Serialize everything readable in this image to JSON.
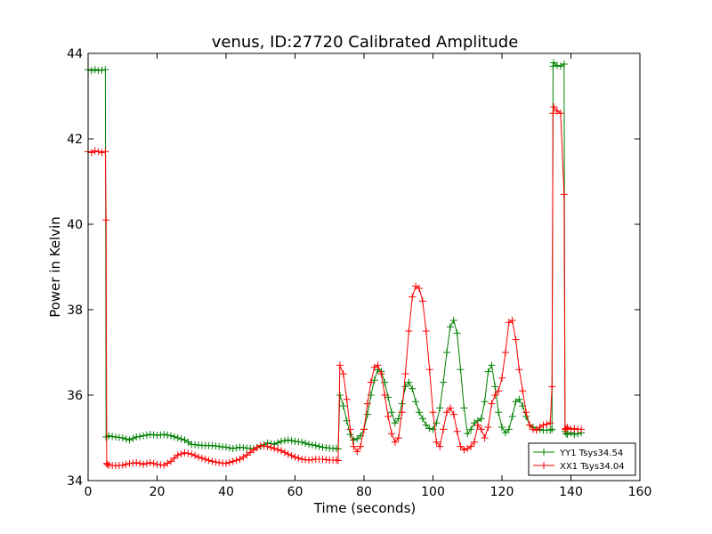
{
  "chart_data": {
    "type": "line",
    "title": "venus, ID:27720 Calibrated Amplitude",
    "xlabel": "Time (seconds)",
    "ylabel": "Power in Kelvin",
    "xlim": [
      0,
      160
    ],
    "ylim": [
      34,
      44
    ],
    "xticks": [
      0,
      20,
      40,
      60,
      80,
      100,
      120,
      140,
      160
    ],
    "yticks": [
      34,
      36,
      38,
      40,
      42,
      44
    ],
    "grid": false,
    "legend_position": "lower-right",
    "series": [
      {
        "name": "YY1 Tsys34.54",
        "color": "#008000",
        "marker": "+",
        "x": [
          0,
          1,
          2,
          3,
          4,
          5,
          5.2,
          5.4,
          6,
          8,
          10,
          12,
          14,
          16,
          18,
          20,
          22,
          24,
          26,
          28,
          30,
          32,
          34,
          36,
          38,
          40,
          42,
          44,
          46,
          48,
          50,
          52,
          54,
          56,
          58,
          60,
          62,
          64,
          66,
          68,
          70,
          72,
          72.5,
          73,
          74,
          75,
          76,
          77,
          78,
          79,
          80,
          81,
          82,
          83,
          84,
          85,
          86,
          87,
          88,
          89,
          90,
          91,
          92,
          93,
          94,
          95,
          96,
          97,
          98,
          99,
          100,
          101,
          102,
          103,
          104,
          105,
          106,
          107,
          108,
          109,
          110,
          111,
          112,
          113,
          114,
          115,
          116,
          117,
          118,
          119,
          120,
          121,
          122,
          123,
          124,
          125,
          126,
          127,
          128,
          129,
          130,
          131,
          132,
          133,
          134,
          134.5,
          134.8,
          135,
          136,
          137,
          138,
          138.3,
          138.6,
          139,
          140,
          141,
          142,
          143
        ],
        "y": [
          43.62,
          43.6,
          43.62,
          43.6,
          43.61,
          43.62,
          35.02,
          35.02,
          35.05,
          35.02,
          35.0,
          34.95,
          35.02,
          35.05,
          35.08,
          35.06,
          35.08,
          35.05,
          35.0,
          34.95,
          34.85,
          34.83,
          34.82,
          34.82,
          34.8,
          34.78,
          34.75,
          34.78,
          34.76,
          34.75,
          34.8,
          34.88,
          34.85,
          34.92,
          34.95,
          34.92,
          34.9,
          34.85,
          34.82,
          34.78,
          34.76,
          34.75,
          34.74,
          36.0,
          35.75,
          35.4,
          35.08,
          34.95,
          34.98,
          35.05,
          35.2,
          35.55,
          36.0,
          36.35,
          36.6,
          36.55,
          36.3,
          35.95,
          35.6,
          35.35,
          35.45,
          35.8,
          36.2,
          36.3,
          36.15,
          35.85,
          35.6,
          35.45,
          35.3,
          35.22,
          35.2,
          35.35,
          35.7,
          36.3,
          37.0,
          37.6,
          37.75,
          37.45,
          36.6,
          35.7,
          35.1,
          35.2,
          35.35,
          35.4,
          35.45,
          35.85,
          36.55,
          36.7,
          36.2,
          35.6,
          35.25,
          35.12,
          35.2,
          35.5,
          35.85,
          35.9,
          35.75,
          35.5,
          35.3,
          35.25,
          35.2,
          35.2,
          35.18,
          35.18,
          35.18,
          35.2,
          43.7,
          43.78,
          43.72,
          43.7,
          43.75,
          35.15,
          35.1,
          35.08,
          35.12,
          35.08,
          35.1,
          35.12
        ]
      },
      {
        "name": "XX1 Tsys34.04",
        "color": "#ff0000",
        "marker": "+",
        "x": [
          0,
          1,
          2,
          3,
          4,
          5,
          5.2,
          5.4,
          5.6,
          6,
          8,
          10,
          12,
          14,
          16,
          18,
          20,
          22,
          24,
          26,
          28,
          30,
          32,
          34,
          36,
          38,
          40,
          42,
          44,
          46,
          48,
          50,
          52,
          54,
          56,
          58,
          60,
          62,
          64,
          66,
          68,
          70,
          72,
          72.5,
          73,
          74,
          75,
          76,
          77,
          78,
          79,
          80,
          81,
          82,
          83,
          84,
          85,
          86,
          87,
          88,
          89,
          90,
          91,
          92,
          93,
          94,
          95,
          96,
          97,
          98,
          99,
          100,
          101,
          102,
          103,
          104,
          105,
          106,
          107,
          108,
          109,
          110,
          111,
          112,
          113,
          114,
          115,
          116,
          117,
          118,
          119,
          120,
          121,
          122,
          123,
          124,
          125,
          126,
          127,
          128,
          129,
          130,
          131,
          132,
          133,
          134,
          134.5,
          134.8,
          135,
          136,
          137,
          138,
          138.3,
          138.6,
          139,
          140,
          141,
          142,
          143
        ],
        "y": [
          41.7,
          41.68,
          41.72,
          41.7,
          41.68,
          41.7,
          40.1,
          34.4,
          34.38,
          34.36,
          34.35,
          34.36,
          34.4,
          34.42,
          34.38,
          34.42,
          34.38,
          34.36,
          34.45,
          34.6,
          34.65,
          34.62,
          34.55,
          34.5,
          34.45,
          34.42,
          34.4,
          34.45,
          34.5,
          34.6,
          34.72,
          34.82,
          34.8,
          34.75,
          34.7,
          34.62,
          34.55,
          34.5,
          34.48,
          34.5,
          34.5,
          34.48,
          34.48,
          34.47,
          36.7,
          36.5,
          35.9,
          35.2,
          34.8,
          34.68,
          34.8,
          35.2,
          35.8,
          36.3,
          36.65,
          36.7,
          36.5,
          36.0,
          35.5,
          35.1,
          34.9,
          35.0,
          35.6,
          36.5,
          37.5,
          38.3,
          38.55,
          38.5,
          38.2,
          37.5,
          36.6,
          35.6,
          34.9,
          34.8,
          35.2,
          35.6,
          35.7,
          35.55,
          35.15,
          34.8,
          34.72,
          34.75,
          34.8,
          34.9,
          35.3,
          35.2,
          35.0,
          35.25,
          35.8,
          36.0,
          36.1,
          36.4,
          37.0,
          37.7,
          37.75,
          37.3,
          36.6,
          36.1,
          35.6,
          35.3,
          35.2,
          35.18,
          35.25,
          35.3,
          35.32,
          35.35,
          36.2,
          42.6,
          42.75,
          42.65,
          42.6,
          40.7,
          35.2,
          35.22,
          35.25,
          35.2,
          35.22,
          35.2,
          35.2
        ]
      }
    ]
  }
}
